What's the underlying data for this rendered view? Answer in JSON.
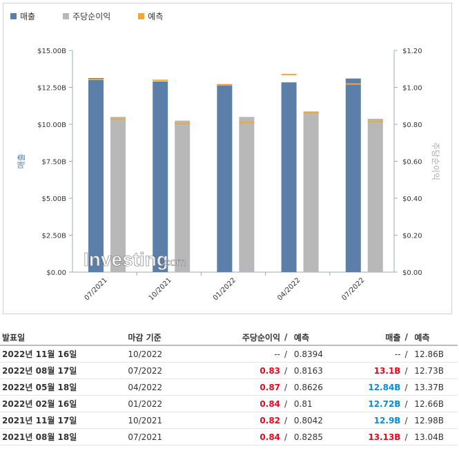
{
  "legend": {
    "revenue_label": "매출",
    "eps_label": "주당순이익",
    "forecast_label": "예측",
    "revenue_color": "#5b7fa9",
    "eps_color": "#b8b8b8",
    "forecast_color": "#f0a830"
  },
  "watermark": {
    "brand": "Investing",
    "suffix": ".com"
  },
  "chart_data": {
    "type": "bar",
    "categories": [
      "07/2021",
      "10/2021",
      "01/2022",
      "04/2022",
      "07/2022"
    ],
    "series": [
      {
        "name": "매출",
        "axis": "left",
        "unit": "B",
        "values": [
          13.13,
          12.9,
          12.72,
          12.84,
          13.1
        ]
      },
      {
        "name": "주당순이익",
        "axis": "right",
        "values": [
          0.84,
          0.82,
          0.84,
          0.87,
          0.83
        ]
      }
    ],
    "forecast": {
      "name": "예측",
      "revenue": [
        13.04,
        12.98,
        12.66,
        13.37,
        12.73
      ],
      "eps": [
        0.8285,
        0.8042,
        0.81,
        0.8626,
        0.8163
      ]
    },
    "ylabel": "매출",
    "y2label": "주당순이익",
    "ylim": [
      0,
      15
    ],
    "y2lim": [
      0,
      1.2
    ],
    "yticks": [
      "$0.00",
      "$2.50B",
      "$5.00B",
      "$7.50B",
      "$10.00B",
      "$12.50B",
      "$15.00B"
    ],
    "y2ticks": [
      "$0.00",
      "$0.20",
      "$0.40",
      "$0.60",
      "$0.80",
      "$1.00",
      "$1.20"
    ]
  },
  "table": {
    "headers": {
      "date": "발표일",
      "period": "마감 기준",
      "eps": "주당순이익",
      "eps_slash": "/",
      "eps_forecast": "예측",
      "revenue": "매출",
      "revenue_slash": "/",
      "revenue_forecast": "예측"
    },
    "rows": [
      {
        "date": "2022년 11월 16일",
        "period": "10/2022",
        "eps": "--",
        "eps_class": "na",
        "eps_forecast": "0.8394",
        "revenue": "--",
        "revenue_class": "na",
        "revenue_forecast": "12.86B"
      },
      {
        "date": "2022년 08월 17일",
        "period": "07/2022",
        "eps": "0.83",
        "eps_class": "neg",
        "eps_forecast": "0.8163",
        "revenue": "13.1B",
        "revenue_class": "neg",
        "revenue_forecast": "12.73B"
      },
      {
        "date": "2022년 05월 18일",
        "period": "04/2022",
        "eps": "0.87",
        "eps_class": "neg",
        "eps_forecast": "0.8626",
        "revenue": "12.84B",
        "revenue_class": "pos",
        "revenue_forecast": "13.37B"
      },
      {
        "date": "2022년 02월 16일",
        "period": "01/2022",
        "eps": "0.84",
        "eps_class": "neg",
        "eps_forecast": "0.81",
        "revenue": "12.72B",
        "revenue_class": "pos",
        "revenue_forecast": "12.66B"
      },
      {
        "date": "2021년 11월 17일",
        "period": "10/2021",
        "eps": "0.82",
        "eps_class": "neg",
        "eps_forecast": "0.8042",
        "revenue": "12.9B",
        "revenue_class": "pos",
        "revenue_forecast": "12.98B"
      },
      {
        "date": "2021년 08월 18일",
        "period": "07/2021",
        "eps": "0.84",
        "eps_class": "neg",
        "eps_forecast": "0.8285",
        "revenue": "13.13B",
        "revenue_class": "neg",
        "revenue_forecast": "13.04B"
      }
    ]
  }
}
